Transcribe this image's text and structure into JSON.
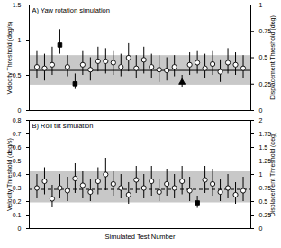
{
  "chart_data": [
    {
      "type": "scatter",
      "title": "A) Yaw rotation simulation",
      "y_label": "Velocity Threshold (deg/s)",
      "y2_label": "Displacement Threshold (deg)",
      "xlim": [
        0,
        29
      ],
      "ylim": [
        0,
        1.5
      ],
      "yticks": [
        0,
        0.5,
        1,
        1.5
      ],
      "y2lim": [
        0,
        1
      ],
      "y2ticks": [
        0,
        0.25,
        0.5,
        0.75,
        1
      ],
      "tick_labels": "y",
      "band": [
        0.36,
        0.78
      ],
      "band_color": "#c8c8c8",
      "reference": {
        "value": 0.57,
        "line_style": "solid"
      },
      "series": [
        {
          "marker": "open_circle",
          "color": "#000000",
          "x": [
            1,
            2,
            3,
            5,
            7,
            8,
            9,
            10,
            11,
            12,
            13,
            14,
            15,
            16,
            17,
            18,
            19,
            21,
            22,
            23,
            24,
            25,
            26,
            27,
            28
          ],
          "values": [
            0.62,
            0.6,
            0.65,
            0.62,
            0.65,
            0.58,
            0.7,
            0.7,
            0.68,
            0.62,
            0.75,
            0.6,
            0.72,
            0.62,
            0.58,
            0.57,
            0.62,
            0.65,
            0.68,
            0.6,
            0.66,
            0.55,
            0.68,
            0.65,
            0.6
          ],
          "lower": [
            0.45,
            0.42,
            0.5,
            0.48,
            0.5,
            0.42,
            0.55,
            0.52,
            0.5,
            0.48,
            0.55,
            0.45,
            0.52,
            0.45,
            0.4,
            0.42,
            0.48,
            0.5,
            0.52,
            0.45,
            0.5,
            0.4,
            0.52,
            0.5,
            0.45
          ],
          "upper": [
            0.85,
            0.8,
            0.9,
            0.78,
            0.85,
            0.75,
            0.9,
            0.88,
            0.85,
            0.8,
            0.95,
            0.78,
            0.9,
            0.8,
            0.78,
            0.75,
            0.78,
            0.82,
            0.85,
            0.8,
            0.85,
            0.72,
            0.88,
            0.82,
            0.78
          ]
        },
        {
          "marker": "square",
          "color": "#000000",
          "x": [
            4,
            6
          ],
          "values": [
            0.93,
            0.38
          ],
          "lower": [
            0.8,
            0.3
          ],
          "upper": [
            1.15,
            0.52
          ]
        },
        {
          "marker": "triangle",
          "color": "#000000",
          "x": [
            20
          ],
          "values": [
            0.4
          ],
          "lower": [
            0.32
          ],
          "upper": [
            0.5
          ]
        }
      ]
    },
    {
      "type": "scatter",
      "title": "B) Roll tilt simulation",
      "x_label": "Simulated Test Number",
      "y_label": "Velocity Threshold (deg/s)",
      "y2_label": "Displacement Threshold (deg)",
      "xlim": [
        0,
        29
      ],
      "ylim": [
        0,
        0.8
      ],
      "yticks": [
        0,
        0.1,
        0.2,
        0.3,
        0.4,
        0.5,
        0.6,
        0.7,
        0.8
      ],
      "y2lim": [
        0,
        2
      ],
      "y2ticks": [
        0,
        0.25,
        0.5,
        0.75,
        1,
        1.25,
        1.5,
        1.75,
        2
      ],
      "tick_labels": "y",
      "band": [
        0.19,
        0.42
      ],
      "band_color": "#c8c8c8",
      "reference": {
        "value": 0.29,
        "line_style": "dashed"
      },
      "series": [
        {
          "marker": "open_circle",
          "color": "#000000",
          "x": [
            1,
            2,
            3,
            4,
            5,
            6,
            7,
            8,
            9,
            10,
            11,
            12,
            13,
            14,
            15,
            16,
            17,
            18,
            19,
            20,
            21,
            23,
            24,
            25,
            26,
            27,
            28
          ],
          "values": [
            0.3,
            0.35,
            0.22,
            0.3,
            0.28,
            0.37,
            0.32,
            0.27,
            0.35,
            0.4,
            0.33,
            0.3,
            0.25,
            0.36,
            0.3,
            0.35,
            0.27,
            0.33,
            0.3,
            0.35,
            0.28,
            0.36,
            0.33,
            0.27,
            0.3,
            0.25,
            0.28
          ],
          "lower": [
            0.22,
            0.25,
            0.16,
            0.22,
            0.2,
            0.26,
            0.22,
            0.2,
            0.25,
            0.28,
            0.24,
            0.22,
            0.18,
            0.26,
            0.22,
            0.24,
            0.2,
            0.24,
            0.22,
            0.25,
            0.2,
            0.26,
            0.24,
            0.2,
            0.22,
            0.18,
            0.2
          ],
          "upper": [
            0.4,
            0.45,
            0.32,
            0.4,
            0.38,
            0.48,
            0.42,
            0.36,
            0.45,
            0.52,
            0.42,
            0.4,
            0.34,
            0.46,
            0.4,
            0.46,
            0.36,
            0.44,
            0.4,
            0.46,
            0.38,
            0.46,
            0.44,
            0.36,
            0.4,
            0.34,
            0.38
          ]
        },
        {
          "marker": "square",
          "color": "#000000",
          "x": [
            22
          ],
          "values": [
            0.19
          ],
          "lower": [
            0.15
          ],
          "upper": [
            0.24
          ]
        }
      ]
    }
  ]
}
